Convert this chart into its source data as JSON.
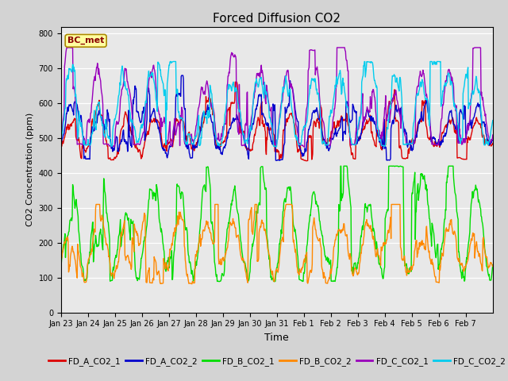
{
  "title": "Forced Diffusion CO2",
  "ylabel": "CO2 Concentration (ppm)",
  "xlabel": "Time",
  "ylim": [
    0,
    820
  ],
  "yticks": [
    0,
    100,
    200,
    300,
    400,
    500,
    600,
    700,
    800
  ],
  "fig_bg": "#d3d3d3",
  "plot_bg": "#e8e8e8",
  "bc_met_label": "BC_met",
  "legend_entries": [
    "FD_A_CO2_1",
    "FD_A_CO2_2",
    "FD_B_CO2_1",
    "FD_B_CO2_2",
    "FD_C_CO2_1",
    "FD_C_CO2_2"
  ],
  "legend_colors": [
    "#dd0000",
    "#0000cc",
    "#00dd00",
    "#ff8800",
    "#9900bb",
    "#00ccee"
  ],
  "line_width": 1.0,
  "title_fontsize": 11,
  "tick_labels": [
    "Jan 23",
    "Jan 24",
    "Jan 25",
    "Jan 26",
    "Jan 27",
    "Jan 28",
    "Jan 29",
    "Jan 30",
    "Jan 31",
    "Feb 1",
    "Feb 2",
    "Feb 3",
    "Feb 4",
    "Feb 5",
    "Feb 6",
    "Feb 7"
  ]
}
